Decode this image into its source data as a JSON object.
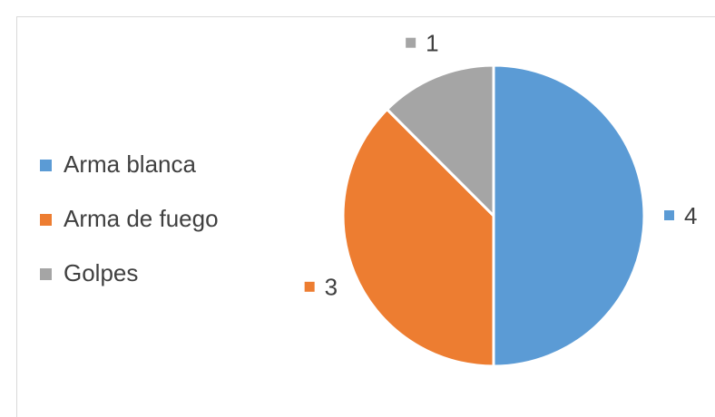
{
  "chart_data": {
    "type": "pie",
    "categories": [
      "Arma blanca",
      "Arma de fuego",
      "Golpes"
    ],
    "values": [
      4,
      3,
      1
    ],
    "colors": [
      "#5b9bd5",
      "#ed7d31",
      "#a5a5a5"
    ],
    "legend": "left"
  }
}
